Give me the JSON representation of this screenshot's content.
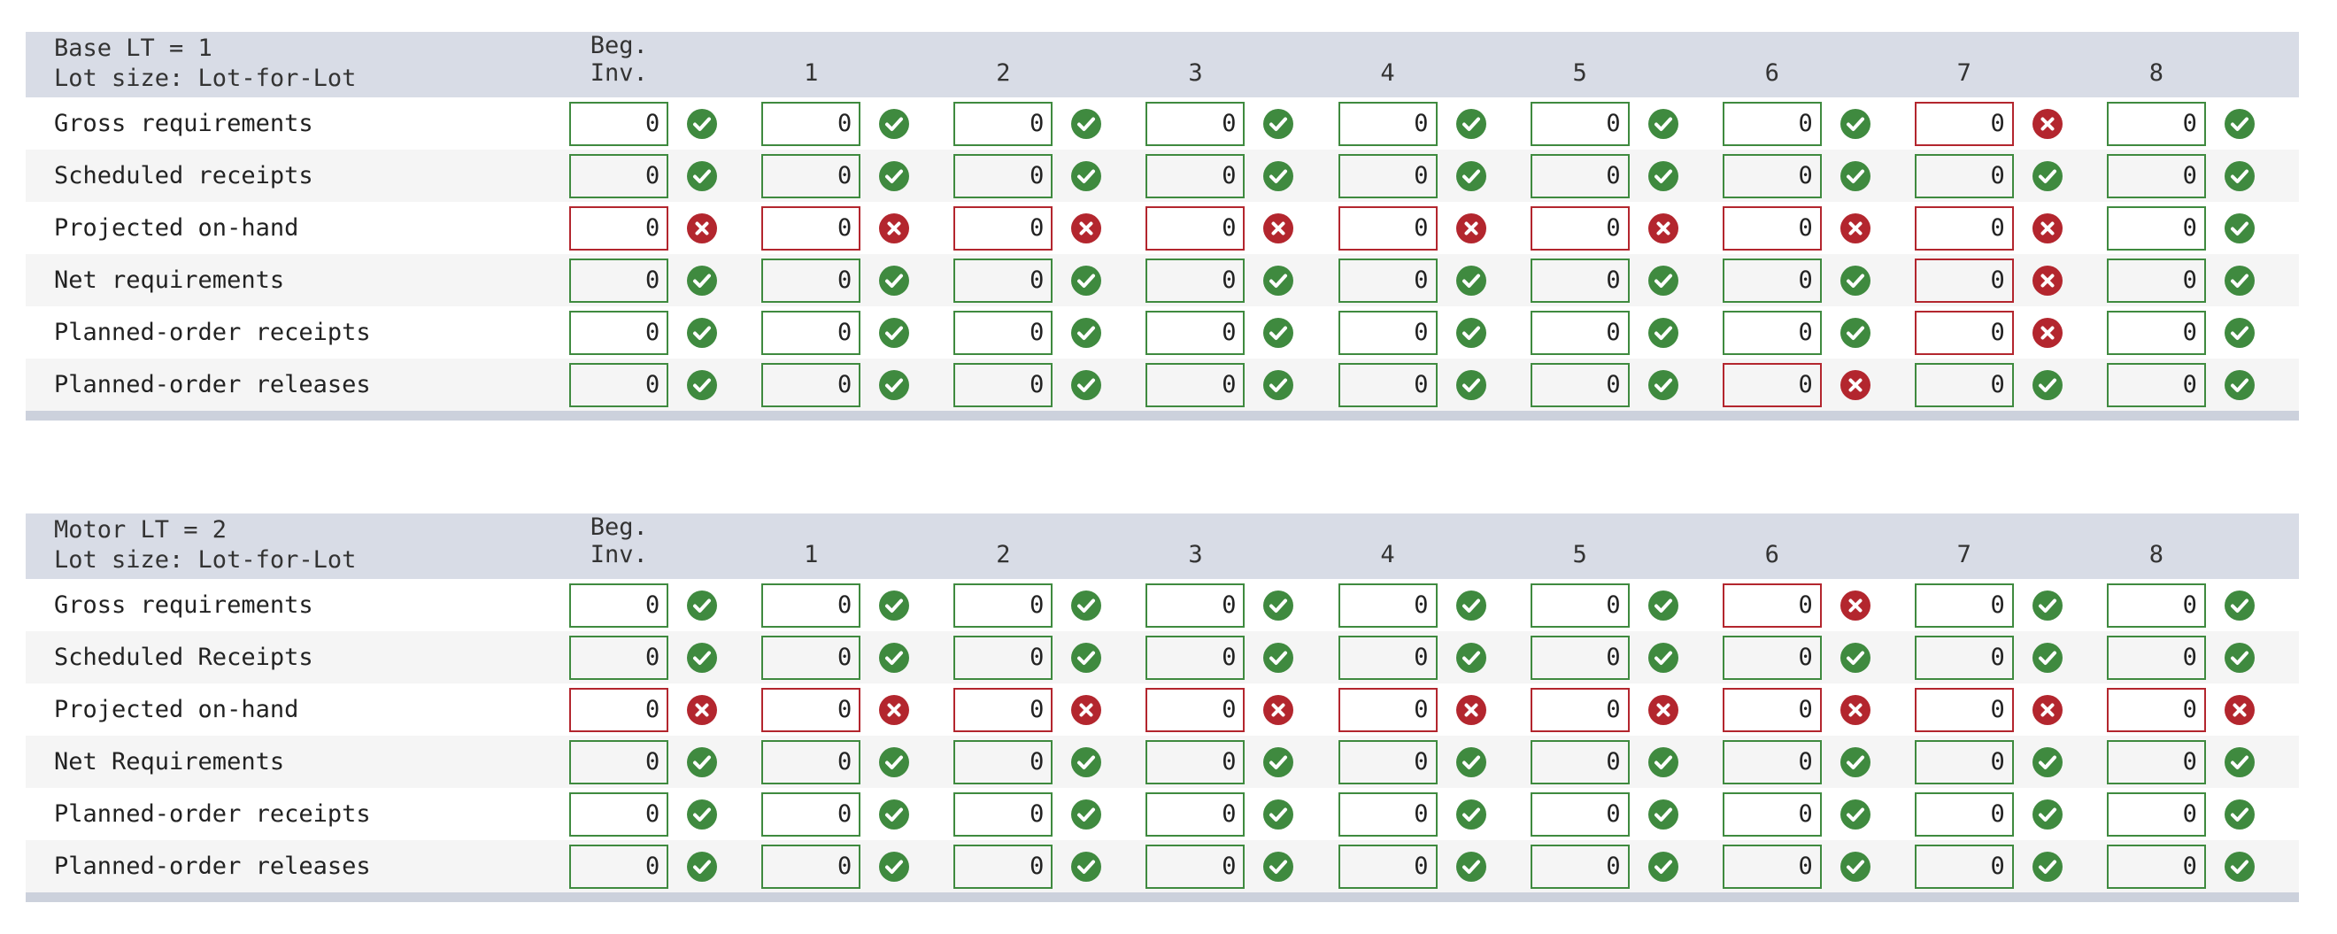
{
  "columns": [
    "Beg. Inv.",
    "1",
    "2",
    "3",
    "4",
    "5",
    "6",
    "7",
    "8"
  ],
  "colors": {
    "ok": "#3f8a3f",
    "bad": "#b3262e",
    "header_bg": "#d8dce6"
  },
  "icons": {
    "ok": "check-circle-icon",
    "bad": "x-circle-icon"
  },
  "tables": [
    {
      "title_line1": "Base LT = 1",
      "title_line2": "Lot size: Lot-for-Lot",
      "rows": [
        {
          "label": "Gross requirements",
          "values": [
            "0",
            "0",
            "0",
            "0",
            "0",
            "0",
            "0",
            "0",
            "0"
          ],
          "status": [
            "ok",
            "ok",
            "ok",
            "ok",
            "ok",
            "ok",
            "ok",
            "bad",
            "ok"
          ]
        },
        {
          "label": "Scheduled receipts",
          "values": [
            "0",
            "0",
            "0",
            "0",
            "0",
            "0",
            "0",
            "0",
            "0"
          ],
          "status": [
            "ok",
            "ok",
            "ok",
            "ok",
            "ok",
            "ok",
            "ok",
            "ok",
            "ok"
          ]
        },
        {
          "label": "Projected on-hand",
          "values": [
            "0",
            "0",
            "0",
            "0",
            "0",
            "0",
            "0",
            "0",
            "0"
          ],
          "status": [
            "bad",
            "bad",
            "bad",
            "bad",
            "bad",
            "bad",
            "bad",
            "bad",
            "ok"
          ]
        },
        {
          "label": "Net requirements",
          "values": [
            "0",
            "0",
            "0",
            "0",
            "0",
            "0",
            "0",
            "0",
            "0"
          ],
          "status": [
            "ok",
            "ok",
            "ok",
            "ok",
            "ok",
            "ok",
            "ok",
            "bad",
            "ok"
          ]
        },
        {
          "label": "Planned-order receipts",
          "values": [
            "0",
            "0",
            "0",
            "0",
            "0",
            "0",
            "0",
            "0",
            "0"
          ],
          "status": [
            "ok",
            "ok",
            "ok",
            "ok",
            "ok",
            "ok",
            "ok",
            "bad",
            "ok"
          ]
        },
        {
          "label": "Planned-order releases",
          "values": [
            "0",
            "0",
            "0",
            "0",
            "0",
            "0",
            "0",
            "0",
            "0"
          ],
          "status": [
            "ok",
            "ok",
            "ok",
            "ok",
            "ok",
            "ok",
            "bad",
            "ok",
            "ok"
          ]
        }
      ]
    },
    {
      "title_line1": "Motor LT = 2",
      "title_line2": "Lot size: Lot-for-Lot",
      "rows": [
        {
          "label": "Gross requirements",
          "values": [
            "0",
            "0",
            "0",
            "0",
            "0",
            "0",
            "0",
            "0",
            "0"
          ],
          "status": [
            "ok",
            "ok",
            "ok",
            "ok",
            "ok",
            "ok",
            "bad",
            "ok",
            "ok"
          ]
        },
        {
          "label": "Scheduled Receipts",
          "values": [
            "0",
            "0",
            "0",
            "0",
            "0",
            "0",
            "0",
            "0",
            "0"
          ],
          "status": [
            "ok",
            "ok",
            "ok",
            "ok",
            "ok",
            "ok",
            "ok",
            "ok",
            "ok"
          ]
        },
        {
          "label": "Projected on-hand",
          "values": [
            "0",
            "0",
            "0",
            "0",
            "0",
            "0",
            "0",
            "0",
            "0"
          ],
          "status": [
            "bad",
            "bad",
            "bad",
            "bad",
            "bad",
            "bad",
            "bad",
            "bad",
            "bad"
          ]
        },
        {
          "label": "Net Requirements",
          "values": [
            "0",
            "0",
            "0",
            "0",
            "0",
            "0",
            "0",
            "0",
            "0"
          ],
          "status": [
            "ok",
            "ok",
            "ok",
            "ok",
            "ok",
            "ok",
            "ok",
            "ok",
            "ok"
          ]
        },
        {
          "label": "Planned-order receipts",
          "values": [
            "0",
            "0",
            "0",
            "0",
            "0",
            "0",
            "0",
            "0",
            "0"
          ],
          "status": [
            "ok",
            "ok",
            "ok",
            "ok",
            "ok",
            "ok",
            "ok",
            "ok",
            "ok"
          ]
        },
        {
          "label": "Planned-order releases",
          "values": [
            "0",
            "0",
            "0",
            "0",
            "0",
            "0",
            "0",
            "0",
            "0"
          ],
          "status": [
            "ok",
            "ok",
            "ok",
            "ok",
            "ok",
            "ok",
            "ok",
            "ok",
            "ok"
          ]
        }
      ]
    }
  ]
}
